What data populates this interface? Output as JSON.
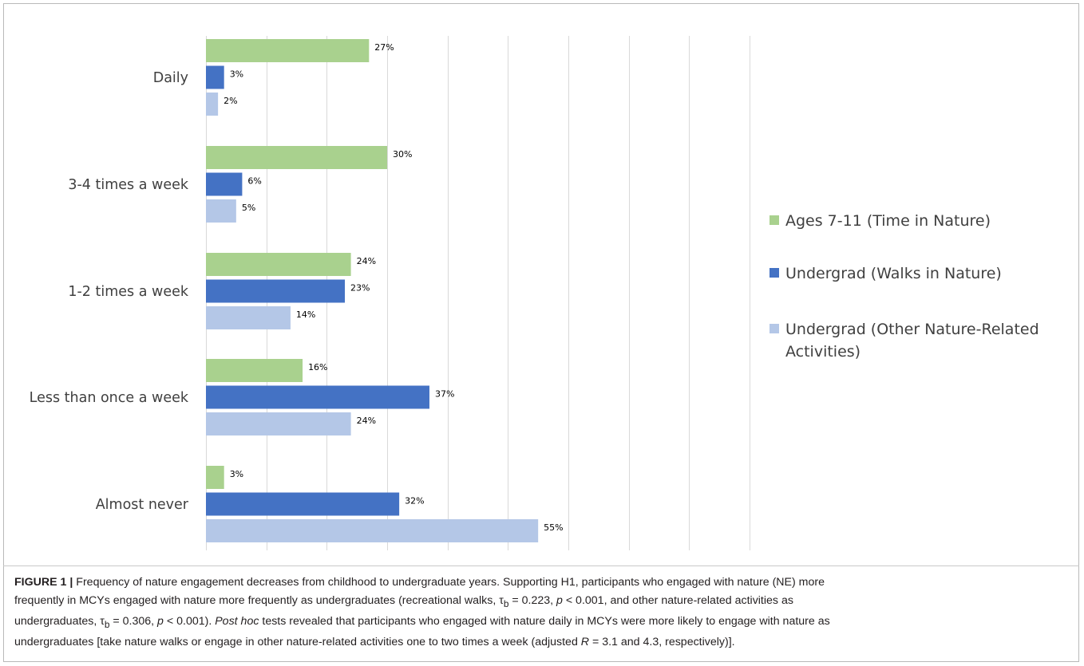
{
  "chart_data": {
    "type": "bar",
    "orientation": "horizontal",
    "title": "",
    "xlabel": "",
    "ylabel": "",
    "xlim": [
      0,
      90
    ],
    "grid": true,
    "legend_position": "right",
    "value_suffix": "%",
    "categories": [
      "Daily",
      "3-4 times a week",
      "1-2 times a week",
      "Less than once a week",
      "Almost never"
    ],
    "series": [
      {
        "name": "Ages 7-11 (Time in Nature)",
        "color": "#a9d18e",
        "values": [
          27,
          30,
          24,
          16,
          3
        ]
      },
      {
        "name": "Undergrad (Walks in Nature)",
        "color": "#4472c4",
        "values": [
          3,
          6,
          23,
          37,
          32
        ]
      },
      {
        "name": "Undergrad (Other Nature-Related Activities)",
        "color": "#b4c7e7",
        "values": [
          2,
          5,
          14,
          24,
          55
        ]
      }
    ],
    "legend": [
      {
        "lines": [
          "Ages 7-11 (Time in Nature)"
        ]
      },
      {
        "lines": [
          "Undergrad (Walks in Nature)"
        ]
      },
      {
        "lines": [
          "Undergrad (Other Nature-Related",
          "Activities)"
        ]
      }
    ]
  },
  "caption": {
    "label": "FIGURE 1 |",
    "line1": " Frequency of nature engagement decreases from childhood to undergraduate years. Supporting H1, participants who engaged with nature (NE) more",
    "line2": "frequently in MCYs engaged with nature more frequently as undergraduates (recreational walks, τ",
    "sub_b": "b",
    "line2_rest": " = 0.223, ",
    "p": "p",
    "line2_end": " < 0.001, and other nature-related activities as",
    "line3": "undergraduates, τ",
    "line3_rest": " = 0.306, ",
    "line3_end": " < 0.001). ",
    "post_hoc": "Post hoc",
    "line3_tail": " tests revealed that participants who engaged with nature daily in MCYs were more likely to engage with nature as",
    "line4": "undergraduates [take nature walks or engage in other nature-related activities one to two times a week (adjusted ",
    "R": "R",
    "line4_end": " = 3.1 and 4.3, respectively)]."
  }
}
